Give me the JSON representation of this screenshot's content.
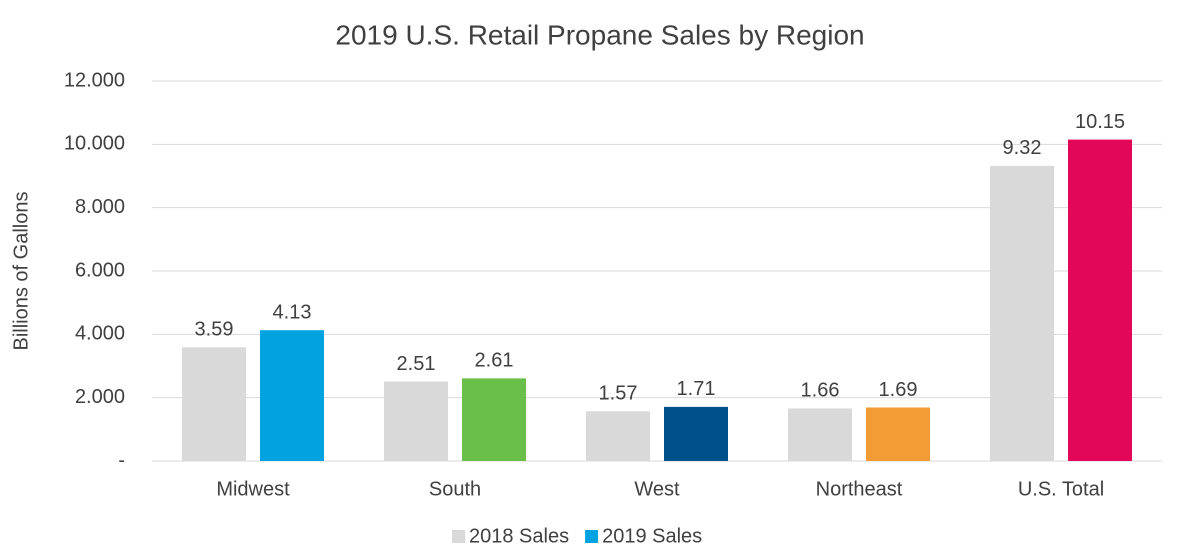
{
  "chart_data": {
    "type": "bar",
    "title": "2019 U.S. Retail Propane Sales by Region",
    "y_label": "Billions of Gallons",
    "categories": [
      "Midwest",
      "South",
      "West",
      "Northeast",
      "U.S. Total"
    ],
    "series": [
      {
        "name": "2018 Sales",
        "color": "#d9d9d9",
        "values": [
          3.59,
          2.51,
          1.57,
          1.66,
          9.32
        ]
      },
      {
        "name": "2019 Sales",
        "color": "#00a3e0",
        "colors": [
          "#00a3e0",
          "#6abf4b",
          "#00508a",
          "#f39c35",
          "#e3075a"
        ],
        "values": [
          4.13,
          2.61,
          1.71,
          1.69,
          10.15
        ]
      }
    ],
    "ylim": [
      0,
      12
    ],
    "yticks": [
      {
        "value": 0,
        "label": "-"
      },
      {
        "value": 2,
        "label": "2.000"
      },
      {
        "value": 4,
        "label": "4.000"
      },
      {
        "value": 6,
        "label": "6.000"
      },
      {
        "value": 8,
        "label": "8.000"
      },
      {
        "value": 10,
        "label": "10.000"
      },
      {
        "value": 12,
        "label": "12.000"
      }
    ],
    "grid": true,
    "legend": "bottom"
  }
}
